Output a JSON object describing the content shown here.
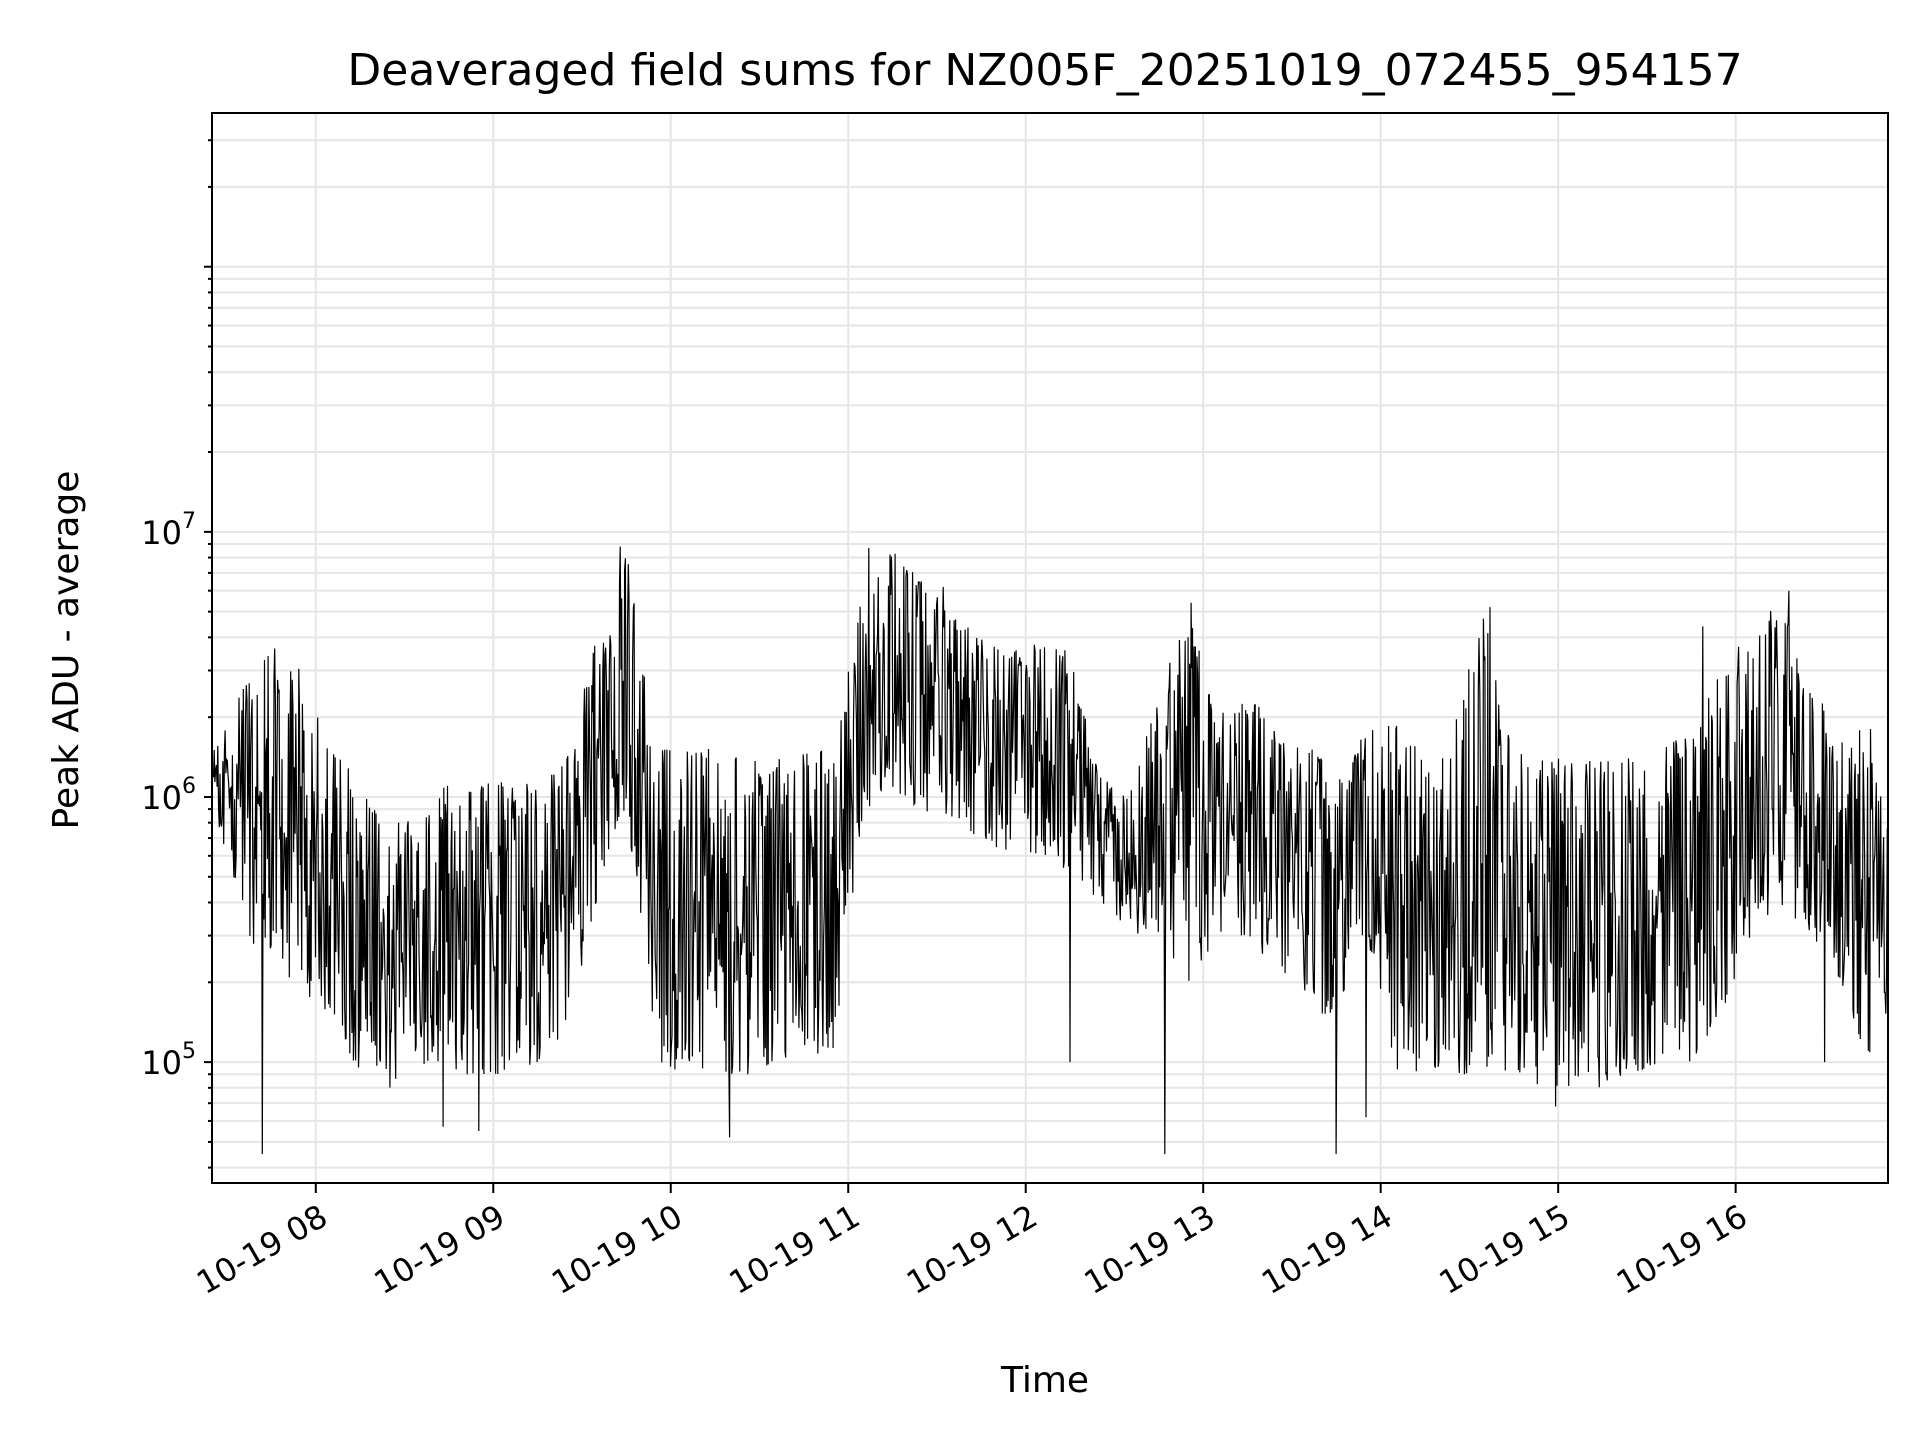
{
  "chart_data": {
    "type": "line",
    "title": "Deaveraged field sums for NZ005F_20251019_072455_954157",
    "xlabel": "Time",
    "ylabel": "Peak ADU - average",
    "xlim": [
      "2025-10-19 07:24:55",
      "2025-10-19 16:51:30"
    ],
    "x_ticks": [
      "10-19 08",
      "10-19 09",
      "10-19 10",
      "10-19 11",
      "10-19 12",
      "10-19 13",
      "10-19 14",
      "10-19 15",
      "10-19 16"
    ],
    "y_scale": "log",
    "ylim": [
      35000,
      380000000
    ],
    "y_ticks": [
      {
        "base": "10",
        "exp": "5"
      },
      {
        "base": "10",
        "exp": "6"
      },
      {
        "base": "10",
        "exp": "7"
      }
    ],
    "grid": true,
    "legend": "none",
    "line_color": "#000000",
    "grid_color": "#e6e6e6",
    "series": [
      {
        "x": [
          "07:25",
          "07:35",
          "07:45",
          "07:55",
          "08:05",
          "08:15",
          "08:25",
          "08:35",
          "08:45",
          "08:55",
          "09:05",
          "09:15",
          "09:25",
          "09:35",
          "09:45",
          "09:55",
          "10:05",
          "10:15",
          "10:25",
          "10:35",
          "10:45",
          "10:55",
          "11:05",
          "11:15",
          "11:25",
          "11:35",
          "11:45",
          "11:55",
          "12:05",
          "12:15",
          "12:25",
          "12:35",
          "12:45",
          "12:55",
          "13:05",
          "13:15",
          "13:25",
          "13:35",
          "13:45",
          "13:55",
          "14:05",
          "14:15",
          "14:25",
          "14:35",
          "14:45",
          "14:55",
          "15:05",
          "15:15",
          "15:25",
          "15:35",
          "15:45",
          "15:55",
          "16:05",
          "16:15",
          "16:25",
          "16:35",
          "16:45",
          "16:50"
        ],
        "min": [
          1000000,
          300000,
          250000,
          180000,
          150000,
          90000,
          80000,
          100000,
          90000,
          90000,
          90000,
          100000,
          120000,
          400000,
          900000,
          100000,
          90000,
          90000,
          90000,
          90000,
          100000,
          100000,
          900000,
          1000000,
          900000,
          800000,
          700000,
          600000,
          600000,
          500000,
          400000,
          300000,
          300000,
          200000,
          300000,
          300000,
          200000,
          150000,
          150000,
          300000,
          90000,
          90000,
          90000,
          90000,
          90000,
          80000,
          80000,
          80000,
          90000,
          100000,
          100000,
          150000,
          300000,
          400000,
          300000,
          200000,
          100000,
          150000
        ],
        "max": [
          1500000,
          2500000,
          4000000,
          3000000,
          1500000,
          1200000,
          800000,
          900000,
          1200000,
          1100000,
          1200000,
          1100000,
          1400000,
          4000000,
          8500000,
          1500000,
          1600000,
          1500000,
          1500000,
          1400000,
          1500000,
          1500000,
          6000000,
          8500000,
          6500000,
          5000000,
          4000000,
          3500000,
          4000000,
          3500000,
          1200000,
          1000000,
          2500000,
          5000000,
          2000000,
          2500000,
          1800000,
          1600000,
          1200000,
          1800000,
          1900000,
          1400000,
          2000000,
          5000000,
          1500000,
          1400000,
          1400000,
          1400000,
          1400000,
          1500000,
          1800000,
          4000000,
          3500000,
          6000000,
          2500000,
          2000000,
          2000000,
          900000
        ],
        "spikes_down": [
          {
            "x": "07:42",
            "y": 45000
          },
          {
            "x": "08:43",
            "y": 57000
          },
          {
            "x": "08:55",
            "y": 55000
          },
          {
            "x": "10:20",
            "y": 52000
          },
          {
            "x": "12:15",
            "y": 100000
          },
          {
            "x": "12:47",
            "y": 45000
          },
          {
            "x": "13:45",
            "y": 45000
          },
          {
            "x": "13:55",
            "y": 62000
          },
          {
            "x": "14:59",
            "y": 68000
          },
          {
            "x": "16:30",
            "y": 100000
          }
        ],
        "spikes_up": [
          {
            "x": "09:43",
            "y": 8800000
          },
          {
            "x": "11:07",
            "y": 8700000
          },
          {
            "x": "11:23",
            "y": 6300000
          },
          {
            "x": "11:32",
            "y": 6200000
          },
          {
            "x": "12:56",
            "y": 5400000
          },
          {
            "x": "14:37",
            "y": 5200000
          },
          {
            "x": "15:49",
            "y": 4400000
          },
          {
            "x": "16:18",
            "y": 6000000
          }
        ]
      }
    ]
  }
}
